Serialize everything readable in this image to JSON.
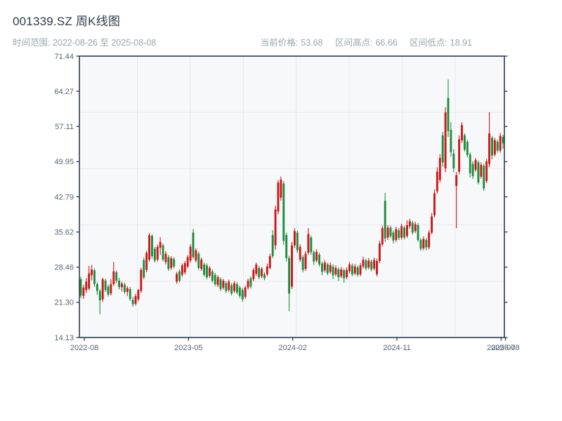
{
  "header": {
    "title": "001339.SZ 周K线图",
    "subtitle": "时间范围: 2022-08-26 至 2025-08-08",
    "stats": [
      {
        "label": "当前价格:",
        "value": "53.68"
      },
      {
        "label": "区间高点:",
        "value": "66.66"
      },
      {
        "label": "区间低点:",
        "value": "18.91"
      }
    ]
  },
  "chart_data": {
    "type": "candlestick",
    "symbol": "001339.SZ",
    "interval": "weekly",
    "title": "001339.SZ 周K线图",
    "date_range": {
      "start": "2022-08-26",
      "end": "2025-08-08"
    },
    "current_price": 53.68,
    "period_high": 66.66,
    "period_low": 18.91,
    "ylim": [
      14.13,
      71.44
    ],
    "grid": true,
    "up_color": "#cc1717",
    "down_color": "#1e8c3c",
    "y_ticks": [
      "71.44",
      "64.27",
      "57.11",
      "49.95",
      "42.79",
      "35.62",
      "28.46",
      "21.30",
      "14.13"
    ],
    "x_ticks": [
      {
        "label": "2022-08",
        "pos": 1.3
      },
      {
        "label": "2023-05",
        "pos": 39.3
      },
      {
        "label": "2024-02",
        "pos": 77.3
      },
      {
        "label": "2024-11",
        "pos": 115.3
      },
      {
        "label": "2025-07",
        "pos": 153.3
      },
      {
        "label": "2025-08",
        "pos": 154.9
      }
    ],
    "ohlc_format": [
      "open",
      "high",
      "low",
      "close"
    ],
    "ohlc": [
      [
        26.0,
        26.5,
        22.2,
        22.7
      ],
      [
        22.6,
        24.8,
        22.0,
        24.3
      ],
      [
        23.8,
        26.2,
        23.2,
        25.5
      ],
      [
        24.1,
        28.7,
        23.8,
        27.2
      ],
      [
        26.8,
        28.9,
        25.8,
        28.0
      ],
      [
        27.8,
        28.2,
        24.4,
        25.0
      ],
      [
        25.0,
        25.4,
        22.8,
        23.6
      ],
      [
        23.6,
        24.0,
        18.91,
        21.7
      ],
      [
        21.9,
        26.3,
        21.4,
        26.0
      ],
      [
        25.7,
        26.1,
        23.4,
        23.8
      ],
      [
        24.5,
        24.9,
        22.5,
        22.9
      ],
      [
        23.1,
        26.0,
        22.7,
        25.0
      ],
      [
        25.0,
        29.5,
        24.6,
        27.6
      ],
      [
        27.4,
        27.8,
        25.2,
        25.7
      ],
      [
        25.7,
        26.3,
        23.9,
        24.4
      ],
      [
        24.4,
        25.5,
        23.5,
        25.1
      ],
      [
        24.9,
        25.3,
        23.0,
        23.4
      ],
      [
        23.4,
        24.6,
        22.6,
        24.2
      ],
      [
        24.0,
        24.4,
        21.6,
        22.0
      ],
      [
        21.8,
        22.4,
        20.4,
        20.9
      ],
      [
        21.0,
        23.0,
        20.6,
        22.6
      ],
      [
        21.9,
        24.0,
        21.5,
        23.8
      ],
      [
        23.6,
        28.3,
        23.2,
        27.9
      ],
      [
        29.9,
        30.4,
        26.0,
        26.4
      ],
      [
        27.9,
        31.8,
        27.4,
        31.4
      ],
      [
        30.0,
        35.4,
        29.6,
        35.0
      ],
      [
        34.8,
        35.2,
        30.2,
        30.7
      ],
      [
        32.2,
        32.6,
        29.4,
        29.8
      ],
      [
        30.0,
        33.0,
        29.6,
        32.6
      ],
      [
        32.4,
        34.6,
        31.0,
        33.6
      ],
      [
        32.9,
        33.3,
        29.6,
        30.0
      ],
      [
        29.5,
        31.7,
        29.0,
        31.2
      ],
      [
        30.5,
        30.9,
        27.7,
        28.1
      ],
      [
        28.3,
        30.7,
        27.9,
        30.3
      ],
      [
        30.1,
        30.5,
        28.2,
        28.6
      ],
      [
        25.5,
        27.5,
        25.1,
        27.1
      ],
      [
        27.6,
        28.0,
        25.3,
        25.7
      ],
      [
        26.9,
        29.2,
        26.5,
        28.8
      ],
      [
        27.4,
        29.7,
        27.0,
        29.3
      ],
      [
        28.6,
        30.9,
        28.2,
        30.5
      ],
      [
        29.8,
        33.1,
        29.4,
        32.6
      ],
      [
        35.5,
        36.2,
        30.1,
        30.5
      ],
      [
        29.8,
        32.3,
        29.4,
        31.9
      ],
      [
        31.2,
        31.6,
        27.9,
        28.3
      ],
      [
        28.1,
        30.4,
        27.7,
        30.0
      ],
      [
        29.0,
        29.4,
        26.5,
        26.9
      ],
      [
        28.8,
        29.2,
        26.0,
        26.4
      ],
      [
        26.7,
        28.7,
        26.3,
        28.3
      ],
      [
        27.6,
        28.0,
        25.3,
        25.7
      ],
      [
        26.9,
        27.3,
        24.6,
        25.0
      ],
      [
        24.8,
        26.8,
        24.4,
        26.4
      ],
      [
        26.0,
        26.4,
        23.6,
        24.0
      ],
      [
        24.3,
        26.1,
        23.9,
        25.7
      ],
      [
        25.2,
        25.6,
        23.2,
        23.6
      ],
      [
        23.8,
        25.9,
        23.4,
        25.5
      ],
      [
        24.8,
        25.2,
        22.7,
        23.1
      ],
      [
        23.6,
        25.6,
        23.2,
        25.2
      ],
      [
        25.0,
        25.4,
        22.9,
        23.3
      ],
      [
        24.3,
        24.7,
        22.2,
        22.6
      ],
      [
        23.8,
        24.2,
        21.4,
        21.9
      ],
      [
        22.4,
        24.7,
        22.0,
        24.3
      ],
      [
        24.3,
        26.1,
        23.9,
        25.7
      ],
      [
        26.2,
        26.6,
        24.1,
        24.5
      ],
      [
        26.0,
        28.3,
        25.6,
        27.9
      ],
      [
        27.1,
        29.4,
        26.7,
        29.0
      ],
      [
        28.3,
        28.7,
        26.0,
        26.4
      ],
      [
        26.6,
        28.5,
        26.2,
        28.1
      ],
      [
        27.0,
        27.4,
        25.8,
        26.2
      ],
      [
        27.0,
        29.2,
        26.6,
        28.6
      ],
      [
        28.3,
        31.2,
        28.0,
        30.7
      ],
      [
        35.0,
        36.0,
        30.3,
        30.7
      ],
      [
        32.9,
        41.0,
        32.0,
        40.2
      ],
      [
        39.8,
        46.2,
        39.2,
        45.7
      ],
      [
        42.6,
        46.9,
        42.0,
        46.3
      ],
      [
        45.5,
        46.0,
        33.0,
        33.8
      ],
      [
        35.0,
        35.5,
        29.6,
        30.3
      ],
      [
        30.3,
        30.8,
        19.5,
        23.1
      ],
      [
        24.5,
        33.6,
        24.0,
        32.9
      ],
      [
        32.9,
        36.4,
        32.4,
        35.8
      ],
      [
        35.5,
        35.9,
        31.4,
        31.9
      ],
      [
        30.0,
        33.1,
        29.5,
        32.6
      ],
      [
        30.5,
        30.9,
        27.4,
        27.9
      ],
      [
        28.1,
        31.7,
        27.7,
        31.2
      ],
      [
        31.4,
        36.4,
        31.0,
        35.2
      ],
      [
        34.5,
        34.9,
        31.0,
        31.5
      ],
      [
        31.5,
        31.9,
        28.9,
        29.6
      ],
      [
        29.8,
        32.1,
        29.4,
        31.6
      ],
      [
        31.0,
        31.4,
        28.6,
        29.0
      ],
      [
        29.2,
        29.6,
        26.8,
        27.5
      ],
      [
        27.8,
        29.9,
        27.4,
        29.4
      ],
      [
        29.0,
        29.4,
        26.8,
        27.2
      ],
      [
        27.5,
        29.4,
        27.1,
        28.9
      ],
      [
        28.6,
        29.0,
        26.0,
        26.8
      ],
      [
        27.0,
        28.8,
        26.6,
        28.3
      ],
      [
        28.0,
        28.4,
        25.6,
        26.4
      ],
      [
        26.6,
        28.5,
        26.2,
        28.0
      ],
      [
        27.8,
        28.2,
        25.3,
        26.2
      ],
      [
        26.4,
        28.4,
        26.0,
        27.9
      ],
      [
        27.6,
        29.5,
        27.2,
        29.0
      ],
      [
        28.8,
        29.2,
        26.6,
        27.0
      ],
      [
        27.2,
        29.1,
        26.8,
        28.6
      ],
      [
        28.4,
        28.8,
        26.5,
        26.9
      ],
      [
        27.0,
        29.3,
        26.6,
        28.8
      ],
      [
        28.6,
        30.6,
        28.2,
        30.0
      ],
      [
        29.8,
        30.2,
        27.8,
        28.2
      ],
      [
        28.4,
        30.3,
        28.0,
        29.8
      ],
      [
        29.6,
        30.0,
        27.6,
        28.0
      ],
      [
        28.2,
        30.4,
        27.8,
        29.9
      ],
      [
        27.0,
        30.2,
        26.6,
        29.7
      ],
      [
        29.7,
        33.8,
        29.3,
        33.3
      ],
      [
        33.1,
        36.9,
        32.7,
        36.4
      ],
      [
        42.0,
        43.6,
        33.6,
        34.3
      ],
      [
        34.5,
        37.0,
        34.0,
        36.5
      ],
      [
        36.5,
        36.9,
        34.4,
        34.8
      ],
      [
        35.5,
        35.9,
        33.3,
        33.9
      ],
      [
        34.0,
        36.7,
        33.6,
        36.2
      ],
      [
        36.0,
        36.4,
        34.0,
        34.4
      ],
      [
        34.5,
        37.3,
        34.1,
        36.8
      ],
      [
        36.5,
        36.9,
        34.1,
        34.5
      ],
      [
        34.8,
        38.0,
        34.4,
        37.0
      ],
      [
        36.8,
        38.3,
        36.3,
        37.8
      ],
      [
        37.5,
        37.9,
        35.1,
        35.5
      ],
      [
        35.8,
        37.7,
        35.4,
        37.2
      ],
      [
        37.0,
        37.4,
        33.6,
        34.0
      ],
      [
        34.0,
        34.4,
        31.8,
        32.2
      ],
      [
        32.3,
        34.7,
        31.9,
        34.2
      ],
      [
        34.0,
        34.4,
        31.9,
        32.5
      ],
      [
        32.5,
        36.0,
        32.1,
        35.5
      ],
      [
        35.5,
        39.5,
        35.1,
        38.8
      ],
      [
        39.0,
        44.3,
        38.6,
        43.5
      ],
      [
        43.9,
        48.8,
        43.4,
        47.9
      ],
      [
        46.2,
        51.5,
        45.7,
        50.7
      ],
      [
        55.3,
        56.0,
        48.9,
        49.8
      ],
      [
        48.6,
        61.0,
        47.8,
        60.0
      ],
      [
        62.9,
        66.66,
        55.0,
        56.2
      ],
      [
        56.4,
        58.0,
        51.0,
        51.9
      ],
      [
        51.6,
        52.5,
        47.8,
        48.6
      ],
      [
        45.0,
        47.8,
        36.4,
        47.2
      ],
      [
        47.9,
        55.3,
        47.4,
        54.5
      ],
      [
        54.3,
        58.0,
        53.8,
        57.4
      ],
      [
        55.3,
        55.7,
        52.0,
        52.4
      ],
      [
        54.0,
        54.4,
        50.8,
        51.3
      ],
      [
        51.4,
        51.8,
        46.7,
        47.6
      ],
      [
        49.5,
        50.0,
        46.4,
        47.0
      ],
      [
        48.3,
        50.7,
        47.9,
        50.3
      ],
      [
        49.8,
        50.2,
        45.3,
        45.7
      ],
      [
        46.9,
        49.8,
        46.5,
        49.3
      ],
      [
        49.1,
        49.5,
        44.0,
        44.5
      ],
      [
        46.0,
        50.5,
        45.6,
        50.0
      ],
      [
        49.5,
        60.0,
        48.8,
        55.7
      ],
      [
        54.8,
        55.2,
        50.4,
        51.2
      ],
      [
        51.4,
        54.8,
        51.0,
        54.3
      ],
      [
        54.0,
        54.4,
        51.8,
        52.2
      ],
      [
        52.2,
        55.8,
        51.8,
        55.2
      ],
      [
        55.0,
        55.4,
        52.6,
        53.68
      ]
    ]
  }
}
